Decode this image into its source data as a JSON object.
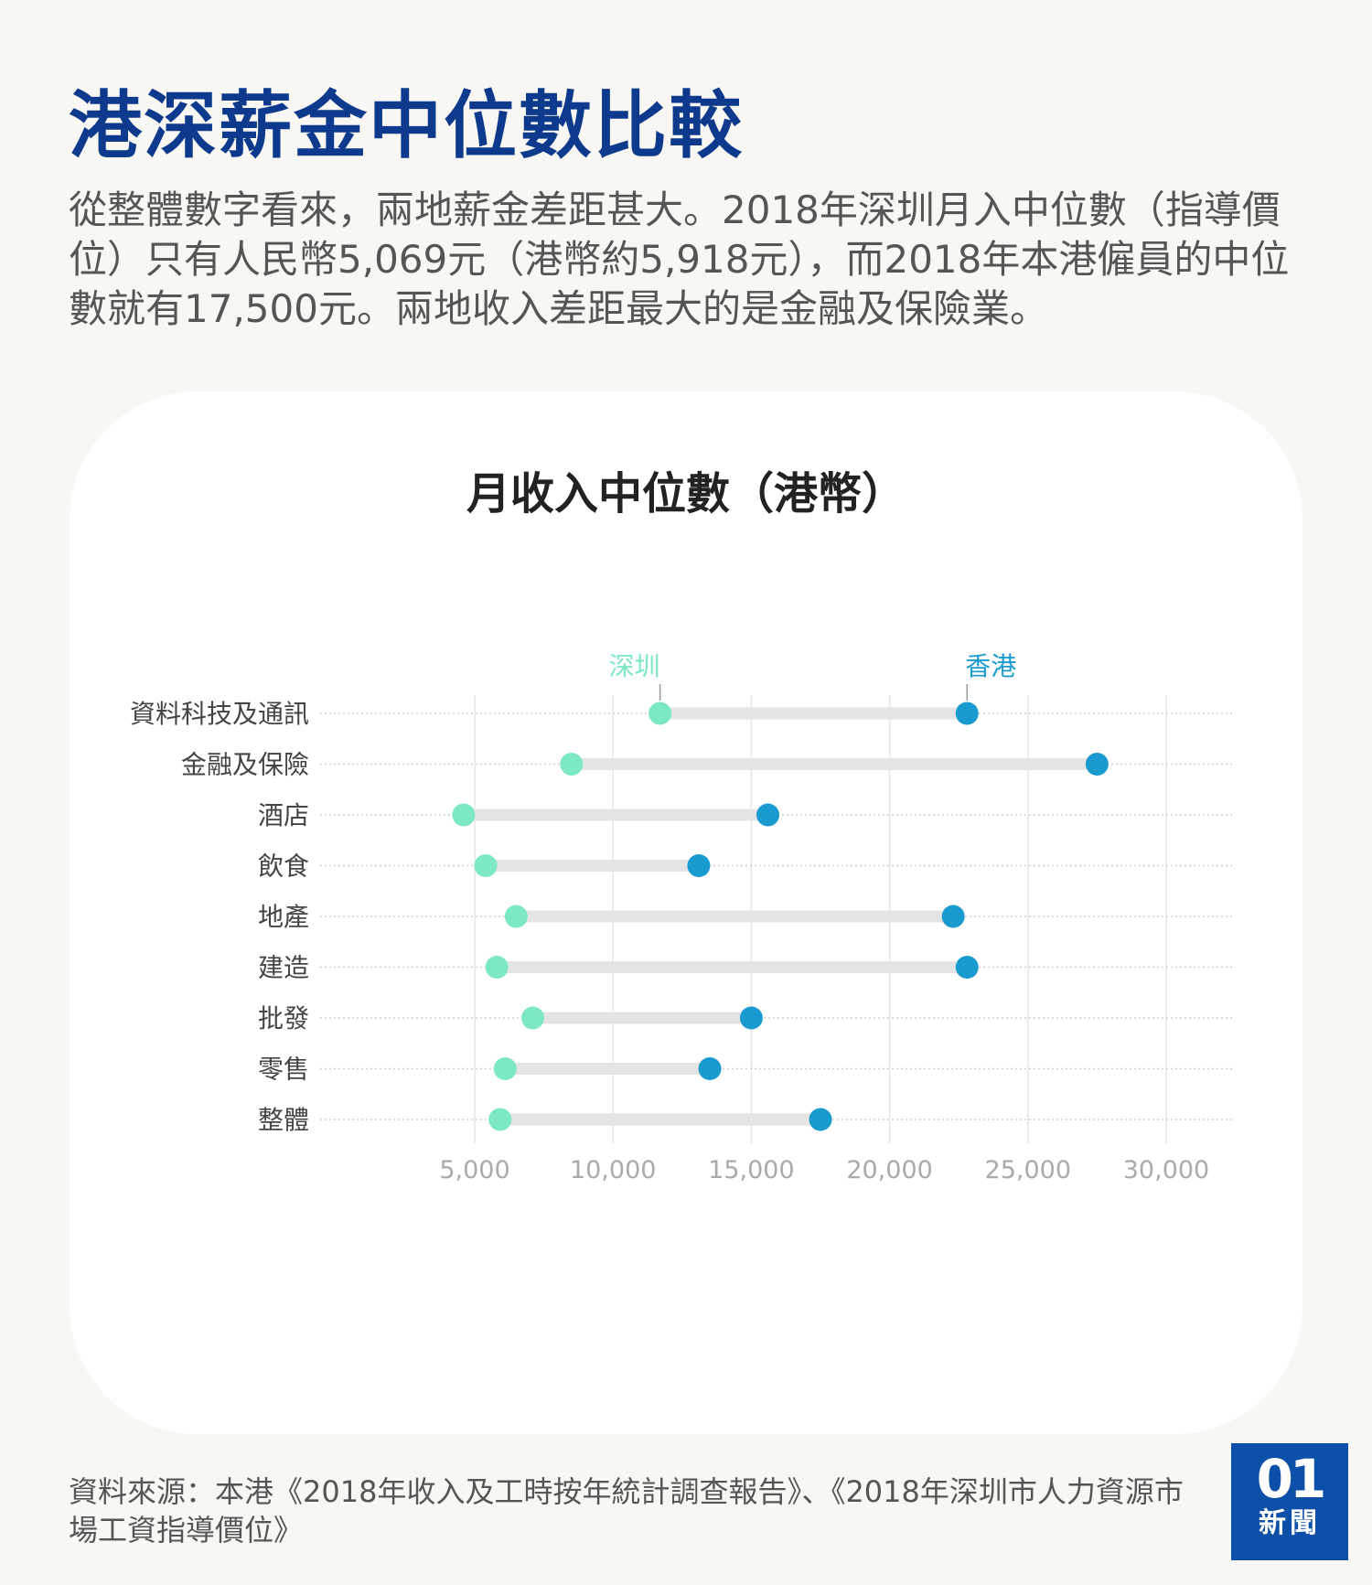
{
  "headline": "港深薪金中位數比較",
  "intro": "從整體數字看來，兩地薪金差距甚大。2018年深圳月入中位數（指導價位）只有人民幣5,069元（港幣約5,918元），而2018年本港僱員的中位數就有17,500元。兩地收入差距最大的是金融及保險業。",
  "source": "資料來源：本港《2018年收入及工時按年統計調查報告》、《2018年深圳市人力資源市場工資指導價位》",
  "logo": {
    "mark": "01",
    "text": "新聞",
    "color": "#0b4fa8"
  },
  "chart_data": {
    "type": "dumbbell",
    "title": "月收入中位數（港幣）",
    "categories": [
      "資料科技及通訊",
      "金融及保險",
      "酒店",
      "飲食",
      "地產",
      "建造",
      "批發",
      "零售",
      "整體"
    ],
    "series": [
      {
        "name": "深圳",
        "color": "#7de8c4",
        "values": [
          11700,
          8500,
          4600,
          5400,
          6500,
          5800,
          7100,
          6100,
          5918
        ]
      },
      {
        "name": "香港",
        "color": "#1a9bd0",
        "values": [
          22800,
          27500,
          15600,
          13100,
          22300,
          22800,
          15000,
          13500,
          17500
        ]
      }
    ],
    "x_ticks": [
      5000,
      10000,
      15000,
      20000,
      25000,
      30000
    ],
    "x_tick_labels": [
      "5,000",
      "10,000",
      "15,000",
      "20,000",
      "25,000",
      "30,000"
    ],
    "xlim": [
      5000,
      30000
    ],
    "xlabel": "",
    "ylabel": "",
    "grid": true
  }
}
